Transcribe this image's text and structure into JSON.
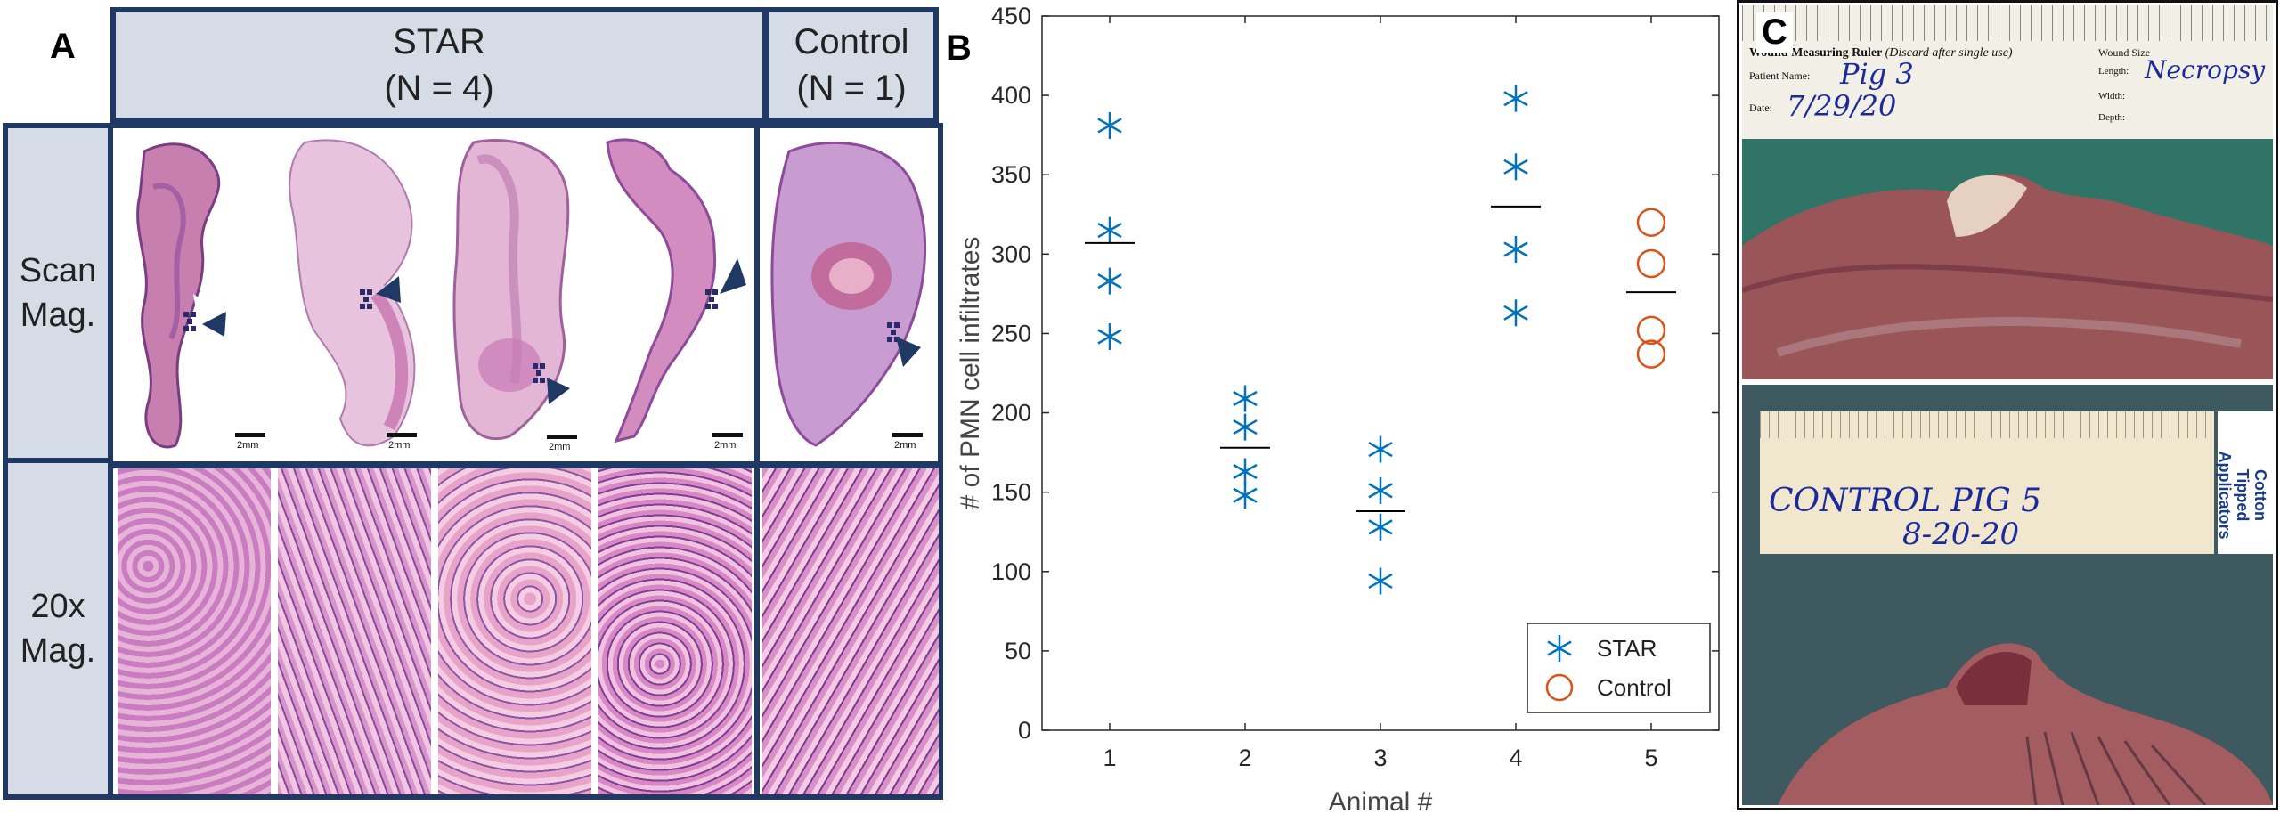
{
  "panel_a": {
    "letter": "A",
    "groups": [
      {
        "label": "STAR",
        "sub": "(N = 4)"
      },
      {
        "label": "Control",
        "sub": "(N = 1)"
      }
    ],
    "rows": [
      {
        "line1": "Scan",
        "line2": "Mag."
      },
      {
        "line1": "20x",
        "line2": "Mag."
      }
    ],
    "scale_label": "2mm"
  },
  "panel_b": {
    "letter": "B"
  },
  "panel_c": {
    "letter": "C",
    "top_photo": {
      "ruler_title": "Wound Measuring Ruler",
      "ruler_note": "(Discard after single use)",
      "patient_label": "Patient Name:",
      "patient_value": "Pig 3",
      "date_label": "Date:",
      "date_value": "7/29/20",
      "size_label": "Wound Size",
      "length_label": "Length:",
      "length_value": "Necropsy",
      "width_label": "Width:",
      "depth_label": "Depth:"
    },
    "bottom_photo": {
      "brand1": "Cotton",
      "brand2": "Tipped",
      "brand3": "Applicators",
      "handwriting1": "CONTROL  PIG 5",
      "handwriting2": "8-20-20"
    }
  },
  "colors": {
    "star": "#0072bd",
    "control": "#d95319",
    "mean_line": "#000000",
    "frame": "#1f3864",
    "header_fill": "#d6dce5"
  },
  "chart_data": {
    "type": "scatter",
    "xlabel": "Animal #",
    "ylabel": "# of PMN cell infiltrates",
    "xlim": [
      0.5,
      5.5
    ],
    "ylim": [
      0,
      450
    ],
    "xticks": [
      1,
      2,
      3,
      4,
      5
    ],
    "yticks": [
      0,
      50,
      100,
      150,
      200,
      250,
      300,
      350,
      400,
      450
    ],
    "grid": false,
    "legend_position": "bottom-right",
    "series": [
      {
        "name": "STAR",
        "marker": "asterisk",
        "points": [
          {
            "x": 1,
            "y": 381
          },
          {
            "x": 1,
            "y": 315
          },
          {
            "x": 1,
            "y": 283
          },
          {
            "x": 1,
            "y": 248
          },
          {
            "x": 2,
            "y": 209
          },
          {
            "x": 2,
            "y": 191
          },
          {
            "x": 2,
            "y": 163
          },
          {
            "x": 2,
            "y": 148
          },
          {
            "x": 3,
            "y": 177
          },
          {
            "x": 3,
            "y": 151
          },
          {
            "x": 3,
            "y": 128
          },
          {
            "x": 3,
            "y": 94
          },
          {
            "x": 4,
            "y": 398
          },
          {
            "x": 4,
            "y": 355
          },
          {
            "x": 4,
            "y": 303
          },
          {
            "x": 4,
            "y": 263
          }
        ]
      },
      {
        "name": "Control",
        "marker": "circle",
        "points": [
          {
            "x": 5,
            "y": 320
          },
          {
            "x": 5,
            "y": 294
          },
          {
            "x": 5,
            "y": 252
          },
          {
            "x": 5,
            "y": 237
          }
        ]
      }
    ],
    "means": [
      {
        "x": 1,
        "y": 307
      },
      {
        "x": 2,
        "y": 178
      },
      {
        "x": 3,
        "y": 138
      },
      {
        "x": 4,
        "y": 330
      },
      {
        "x": 5,
        "y": 276
      }
    ]
  }
}
